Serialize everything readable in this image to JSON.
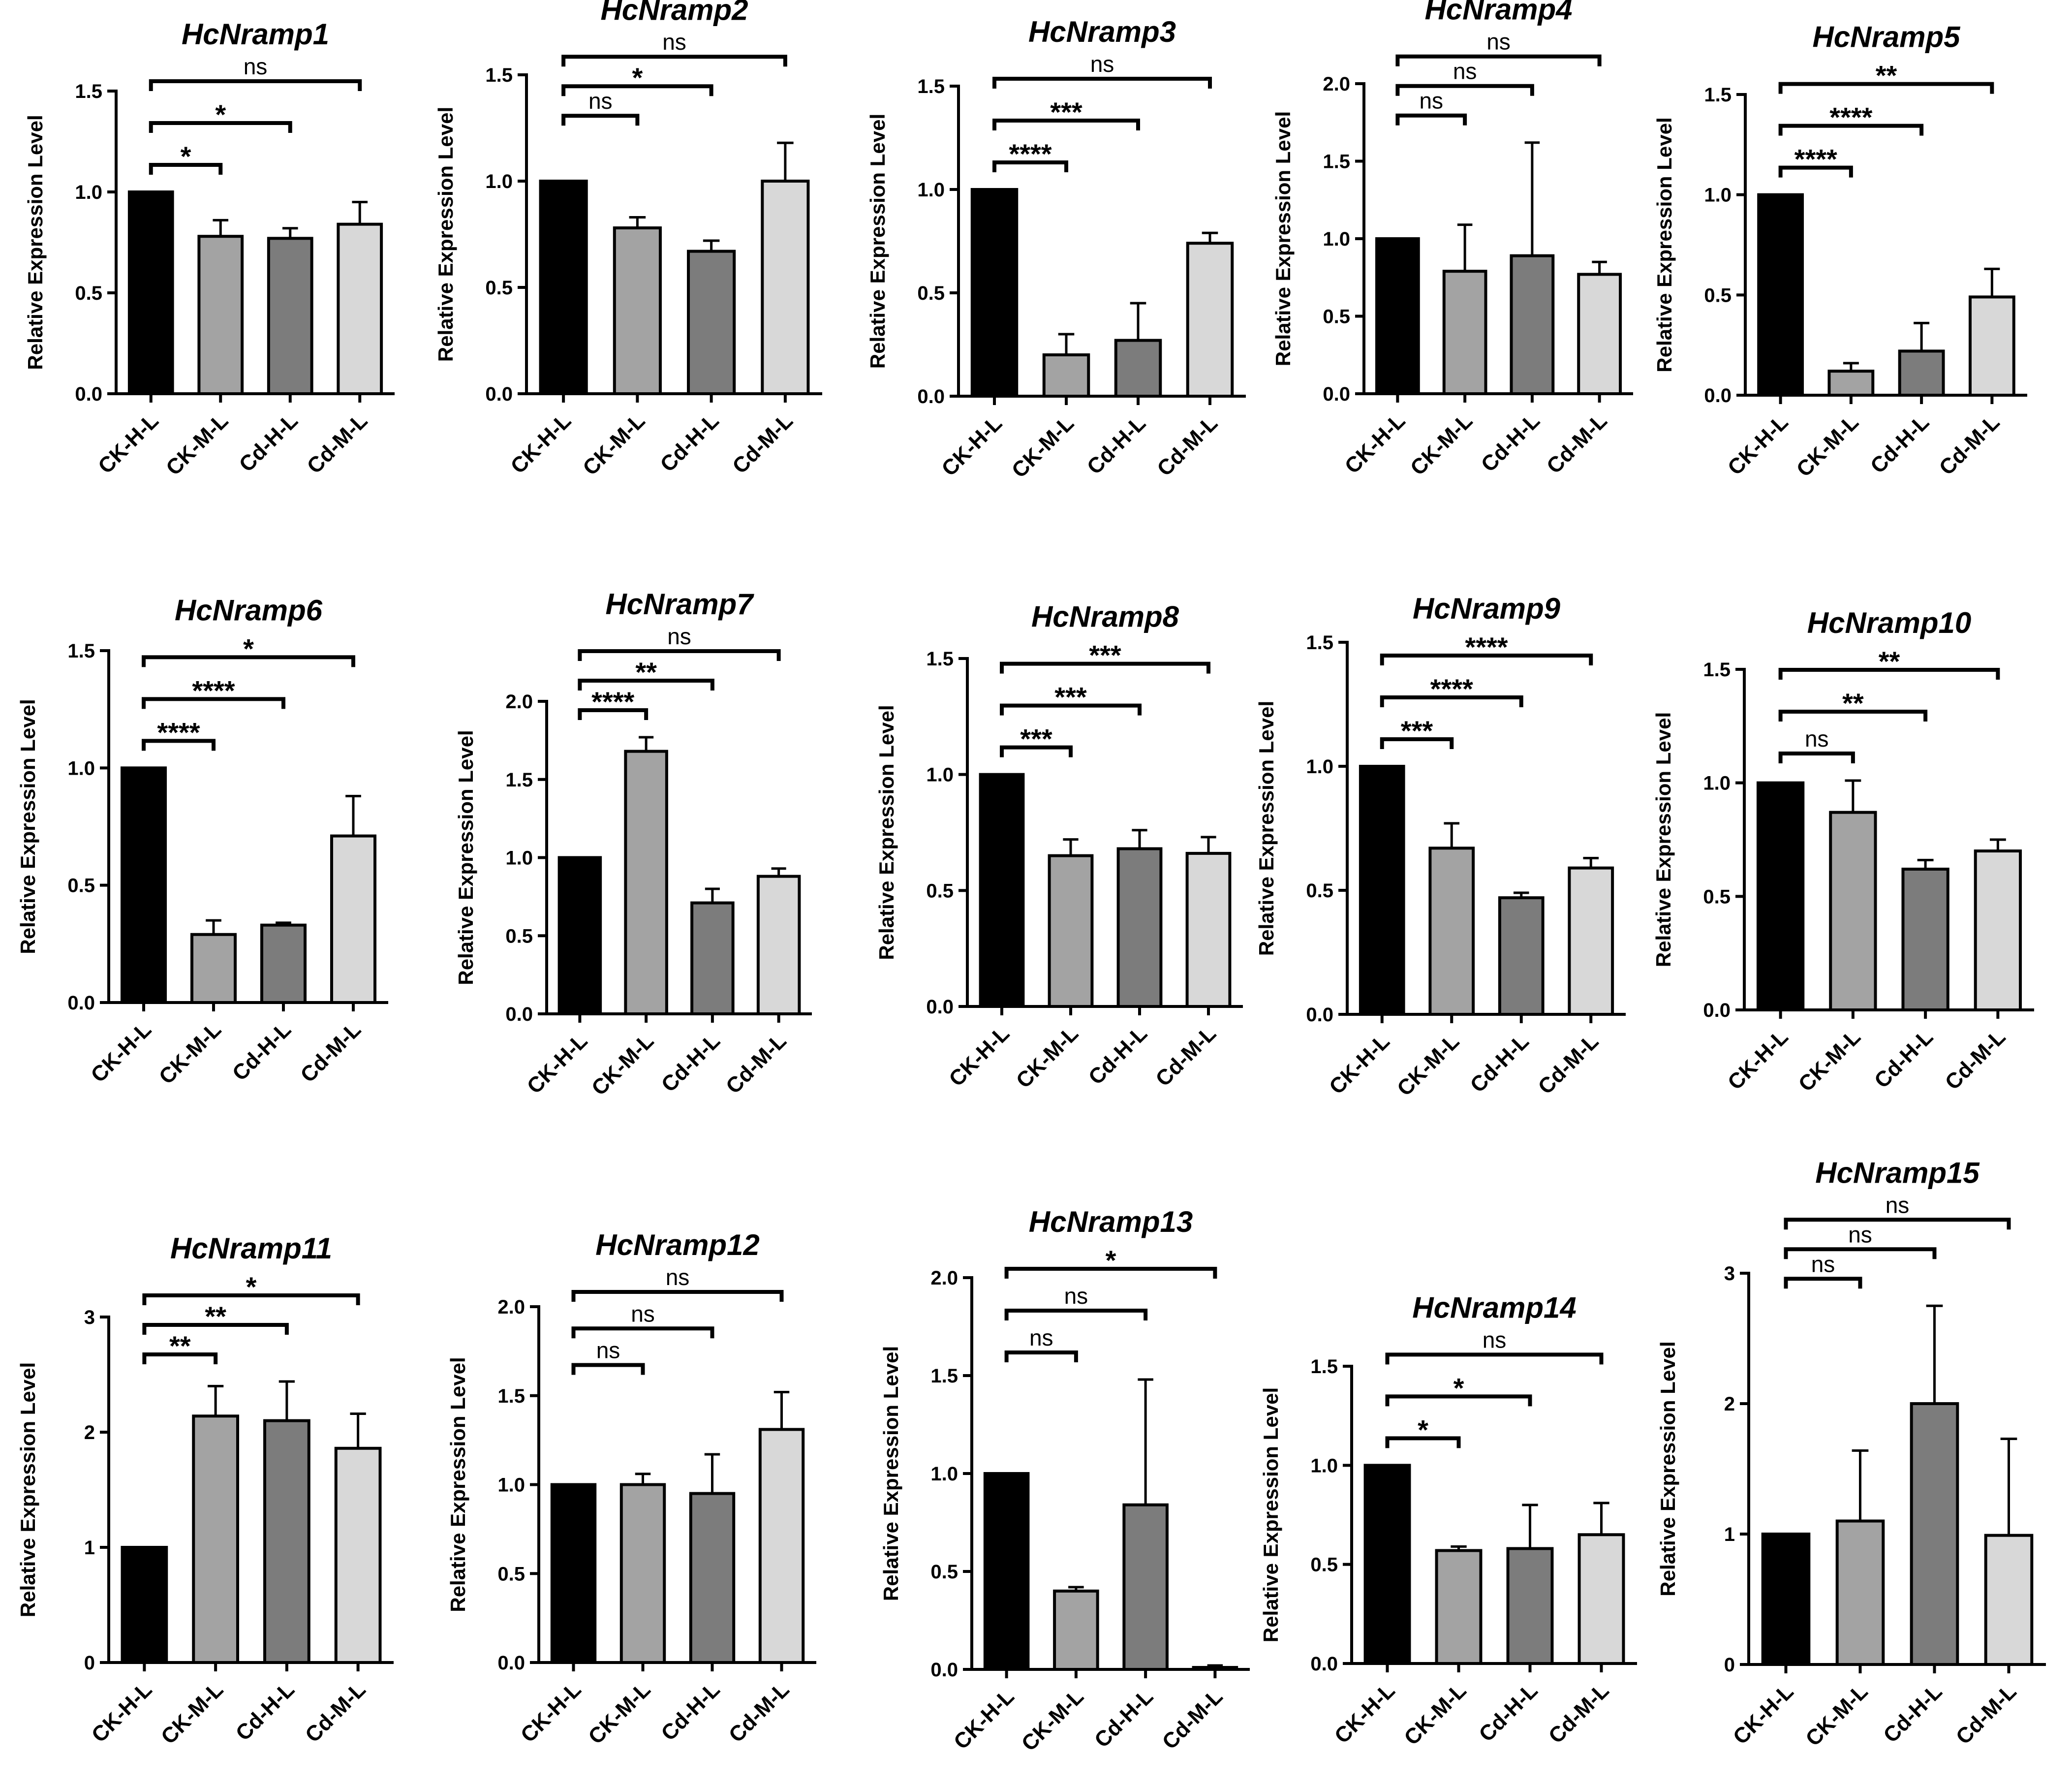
{
  "colors": [
    "#000000",
    "#a3a3a3",
    "#7c7c7c",
    "#d8d8d8"
  ],
  "chart_data": [
    {
      "type": "bar",
      "title": "HcNramp1",
      "ylabel": "Relative Expression Level",
      "categories": [
        "CK-H-L",
        "CK-M-L",
        "Cd-H-L",
        "Cd-M-L"
      ],
      "values": [
        1.0,
        0.78,
        0.77,
        0.84
      ],
      "errors": [
        0,
        0.08,
        0.05,
        0.11
      ],
      "ylim": [
        0,
        1.5
      ],
      "yticks": [
        "0.0",
        "0.5",
        "1.0",
        "1.5"
      ],
      "brackets": [
        {
          "from": 0,
          "to": 1,
          "label": "*"
        },
        {
          "from": 0,
          "to": 2,
          "label": "*"
        },
        {
          "from": 0,
          "to": 3,
          "label": "ns"
        }
      ]
    },
    {
      "type": "bar",
      "title": "HcNramp2",
      "ylabel": "Relative Expression Level",
      "categories": [
        "CK-H-L",
        "CK-M-L",
        "Cd-H-L",
        "Cd-M-L"
      ],
      "values": [
        1.0,
        0.78,
        0.67,
        1.0
      ],
      "errors": [
        0,
        0.05,
        0.05,
        0.18
      ],
      "ylim": [
        0,
        1.5
      ],
      "yticks": [
        "0.0",
        "0.5",
        "1.0",
        "1.5"
      ],
      "brackets": [
        {
          "from": 0,
          "to": 1,
          "label": "ns"
        },
        {
          "from": 0,
          "to": 2,
          "label": "*"
        },
        {
          "from": 0,
          "to": 3,
          "label": "ns"
        }
      ]
    },
    {
      "type": "bar",
      "title": "HcNramp3",
      "ylabel": "Relative Expression Level",
      "categories": [
        "CK-H-L",
        "CK-M-L",
        "Cd-H-L",
        "Cd-M-L"
      ],
      "values": [
        1.0,
        0.2,
        0.27,
        0.74
      ],
      "errors": [
        0,
        0.1,
        0.18,
        0.05
      ],
      "ylim": [
        0,
        1.5
      ],
      "yticks": [
        "0.0",
        "0.5",
        "1.0",
        "1.5"
      ],
      "brackets": [
        {
          "from": 0,
          "to": 1,
          "label": "****"
        },
        {
          "from": 0,
          "to": 2,
          "label": "***"
        },
        {
          "from": 0,
          "to": 3,
          "label": "ns"
        }
      ]
    },
    {
      "type": "bar",
      "title": "HcNramp4",
      "ylabel": "Relative Expression Level",
      "categories": [
        "CK-H-L",
        "CK-M-L",
        "Cd-H-L",
        "Cd-M-L"
      ],
      "values": [
        1.0,
        0.79,
        0.89,
        0.77
      ],
      "errors": [
        0,
        0.3,
        0.73,
        0.08
      ],
      "ylim": [
        0,
        2.0
      ],
      "yticks": [
        "0.0",
        "0.5",
        "1.0",
        "1.5",
        "2.0"
      ],
      "brackets": [
        {
          "from": 0,
          "to": 1,
          "label": "ns"
        },
        {
          "from": 0,
          "to": 2,
          "label": "ns"
        },
        {
          "from": 0,
          "to": 3,
          "label": "ns"
        }
      ]
    },
    {
      "type": "bar",
      "title": "HcNramp5",
      "ylabel": "Relative Expression Level",
      "categories": [
        "CK-H-L",
        "CK-M-L",
        "Cd-H-L",
        "Cd-M-L"
      ],
      "values": [
        1.0,
        0.12,
        0.22,
        0.49
      ],
      "errors": [
        0,
        0.04,
        0.14,
        0.14
      ],
      "ylim": [
        0,
        1.5
      ],
      "yticks": [
        "0.0",
        "0.5",
        "1.0",
        "1.5"
      ],
      "brackets": [
        {
          "from": 0,
          "to": 1,
          "label": "****"
        },
        {
          "from": 0,
          "to": 2,
          "label": "****"
        },
        {
          "from": 0,
          "to": 3,
          "label": "**"
        }
      ]
    },
    {
      "type": "bar",
      "title": "HcNramp6",
      "ylabel": "Relative Expression Level",
      "categories": [
        "CK-H-L",
        "CK-M-L",
        "Cd-H-L",
        "Cd-M-L"
      ],
      "values": [
        1.0,
        0.29,
        0.33,
        0.71
      ],
      "errors": [
        0,
        0.06,
        0.01,
        0.17
      ],
      "ylim": [
        0,
        1.5
      ],
      "yticks": [
        "0.0",
        "0.5",
        "1.0",
        "1.5"
      ],
      "brackets": [
        {
          "from": 0,
          "to": 1,
          "label": "****"
        },
        {
          "from": 0,
          "to": 2,
          "label": "****"
        },
        {
          "from": 0,
          "to": 3,
          "label": "*"
        }
      ]
    },
    {
      "type": "bar",
      "title": "HcNramp7",
      "ylabel": "Relative Expression Level",
      "categories": [
        "CK-H-L",
        "CK-M-L",
        "Cd-H-L",
        "Cd-M-L"
      ],
      "values": [
        1.0,
        1.68,
        0.71,
        0.88
      ],
      "errors": [
        0,
        0.09,
        0.09,
        0.05
      ],
      "ylim": [
        0,
        2.0
      ],
      "yticks": [
        "0.0",
        "0.5",
        "1.0",
        "1.5",
        "2.0"
      ],
      "brackets": [
        {
          "from": 0,
          "to": 1,
          "label": "****"
        },
        {
          "from": 0,
          "to": 2,
          "label": "**"
        },
        {
          "from": 0,
          "to": 3,
          "label": "ns"
        }
      ]
    },
    {
      "type": "bar",
      "title": "HcNramp8",
      "ylabel": "Relative Expression Level",
      "categories": [
        "CK-H-L",
        "CK-M-L",
        "Cd-H-L",
        "Cd-M-L"
      ],
      "values": [
        1.0,
        0.65,
        0.68,
        0.66
      ],
      "errors": [
        0,
        0.07,
        0.08,
        0.07
      ],
      "ylim": [
        0,
        1.5
      ],
      "yticks": [
        "0.0",
        "0.5",
        "1.0",
        "1.5"
      ],
      "brackets": [
        {
          "from": 0,
          "to": 1,
          "label": "***"
        },
        {
          "from": 0,
          "to": 2,
          "label": "***"
        },
        {
          "from": 0,
          "to": 3,
          "label": "***"
        }
      ]
    },
    {
      "type": "bar",
      "title": "HcNramp9",
      "ylabel": "Relative Expression Level",
      "categories": [
        "CK-H-L",
        "CK-M-L",
        "Cd-H-L",
        "Cd-M-L"
      ],
      "values": [
        1.0,
        0.67,
        0.47,
        0.59
      ],
      "errors": [
        0,
        0.1,
        0.02,
        0.04
      ],
      "ylim": [
        0,
        1.5
      ],
      "yticks": [
        "0.0",
        "0.5",
        "1.0",
        "1.5"
      ],
      "brackets": [
        {
          "from": 0,
          "to": 1,
          "label": "***"
        },
        {
          "from": 0,
          "to": 2,
          "label": "****"
        },
        {
          "from": 0,
          "to": 3,
          "label": "****"
        }
      ]
    },
    {
      "type": "bar",
      "title": "HcNramp10",
      "ylabel": "Relative Expression Level",
      "categories": [
        "CK-H-L",
        "CK-M-L",
        "Cd-H-L",
        "Cd-M-L"
      ],
      "values": [
        1.0,
        0.87,
        0.62,
        0.7
      ],
      "errors": [
        0,
        0.14,
        0.04,
        0.05
      ],
      "ylim": [
        0,
        1.5
      ],
      "yticks": [
        "0.0",
        "0.5",
        "1.0",
        "1.5"
      ],
      "brackets": [
        {
          "from": 0,
          "to": 1,
          "label": "ns"
        },
        {
          "from": 0,
          "to": 2,
          "label": "**"
        },
        {
          "from": 0,
          "to": 3,
          "label": "**"
        }
      ]
    },
    {
      "type": "bar",
      "title": "HcNramp11",
      "ylabel": "Relative Expression Level",
      "categories": [
        "CK-H-L",
        "CK-M-L",
        "Cd-H-L",
        "Cd-M-L"
      ],
      "values": [
        1.0,
        2.14,
        2.1,
        1.86
      ],
      "errors": [
        0,
        0.26,
        0.34,
        0.3
      ],
      "ylim": [
        0,
        3
      ],
      "yticks": [
        "0",
        "1",
        "2",
        "3"
      ],
      "brackets": [
        {
          "from": 0,
          "to": 1,
          "label": "**"
        },
        {
          "from": 0,
          "to": 2,
          "label": "**"
        },
        {
          "from": 0,
          "to": 3,
          "label": "*"
        }
      ]
    },
    {
      "type": "bar",
      "title": "HcNramp12",
      "ylabel": "Relative Expression Level",
      "categories": [
        "CK-H-L",
        "CK-M-L",
        "Cd-H-L",
        "Cd-M-L"
      ],
      "values": [
        1.0,
        1.0,
        0.95,
        1.31
      ],
      "errors": [
        0,
        0.06,
        0.22,
        0.21
      ],
      "ylim": [
        0,
        2.0
      ],
      "yticks": [
        "0.0",
        "0.5",
        "1.0",
        "1.5",
        "2.0"
      ],
      "brackets": [
        {
          "from": 0,
          "to": 1,
          "label": "ns"
        },
        {
          "from": 0,
          "to": 2,
          "label": "ns"
        },
        {
          "from": 0,
          "to": 3,
          "label": "ns"
        }
      ]
    },
    {
      "type": "bar",
      "title": "HcNramp13",
      "ylabel": "Relative Expression Level",
      "categories": [
        "CK-H-L",
        "CK-M-L",
        "Cd-H-L",
        "Cd-M-L"
      ],
      "values": [
        1.0,
        0.4,
        0.84,
        0.01
      ],
      "errors": [
        0,
        0.02,
        0.64,
        0.01
      ],
      "ylim": [
        0,
        2.0
      ],
      "yticks": [
        "0.0",
        "0.5",
        "1.0",
        "1.5",
        "2.0"
      ],
      "brackets": [
        {
          "from": 0,
          "to": 1,
          "label": "ns"
        },
        {
          "from": 0,
          "to": 2,
          "label": "ns"
        },
        {
          "from": 0,
          "to": 3,
          "label": "*"
        }
      ]
    },
    {
      "type": "bar",
      "title": "HcNramp14",
      "ylabel": "Relative Expression Level",
      "categories": [
        "CK-H-L",
        "CK-M-L",
        "Cd-H-L",
        "Cd-M-L"
      ],
      "values": [
        1.0,
        0.57,
        0.58,
        0.65
      ],
      "errors": [
        0,
        0.02,
        0.22,
        0.16
      ],
      "ylim": [
        0,
        1.5
      ],
      "yticks": [
        "0.0",
        "0.5",
        "1.0",
        "1.5"
      ],
      "brackets": [
        {
          "from": 0,
          "to": 1,
          "label": "*"
        },
        {
          "from": 0,
          "to": 2,
          "label": "*"
        },
        {
          "from": 0,
          "to": 3,
          "label": "ns"
        }
      ]
    },
    {
      "type": "bar",
      "title": "HcNramp15",
      "ylabel": "Relative Expression Level",
      "categories": [
        "CK-H-L",
        "CK-M-L",
        "Cd-H-L",
        "Cd-M-L"
      ],
      "values": [
        1.0,
        1.1,
        2.0,
        0.99
      ],
      "errors": [
        0,
        0.54,
        0.75,
        0.74
      ],
      "ylim": [
        0,
        3
      ],
      "yticks": [
        "0",
        "1",
        "2",
        "3"
      ],
      "brackets": [
        {
          "from": 0,
          "to": 1,
          "label": "ns"
        },
        {
          "from": 0,
          "to": 2,
          "label": "ns"
        },
        {
          "from": 0,
          "to": 3,
          "label": "ns"
        }
      ]
    }
  ]
}
